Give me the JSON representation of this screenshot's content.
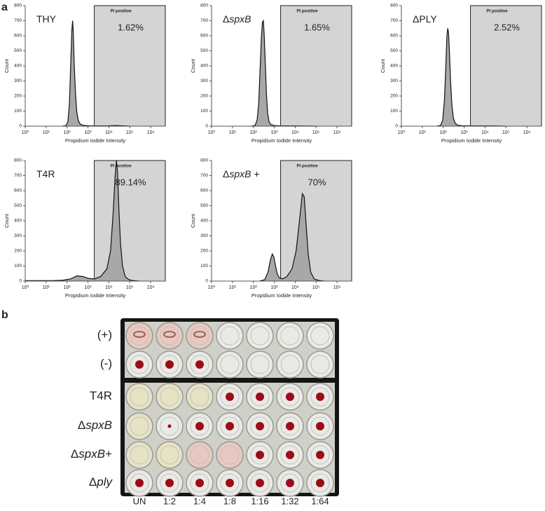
{
  "panel_labels": [
    "a",
    "b"
  ],
  "chart_data": [
    {
      "type": "area",
      "label": [
        {
          "text": "THY"
        }
      ],
      "annotation": "1.62%",
      "gate_label": "PI positive",
      "gate_start": 2000,
      "x_label": "Propidium Iodide Intensity",
      "y_label": "Count",
      "x": [
        60,
        90,
        110,
        130,
        150,
        170,
        185,
        200,
        220,
        250,
        290,
        340,
        420,
        600,
        1000,
        2000,
        8000,
        20000,
        60000,
        100000
      ],
      "values": [
        0,
        4,
        30,
        150,
        420,
        640,
        700,
        610,
        420,
        230,
        100,
        40,
        15,
        5,
        3,
        2,
        2,
        4,
        2,
        0
      ],
      "xlim": [
        1,
        5000000
      ],
      "log_x": true,
      "ylim": [
        0,
        800
      ],
      "xticks": [
        {
          "value": 1,
          "label": "10⁰"
        },
        {
          "value": 10,
          "label": "10¹"
        },
        {
          "value": 100,
          "label": "10²"
        },
        {
          "value": 1000,
          "label": "10³"
        },
        {
          "value": 10000,
          "label": "10⁴"
        },
        {
          "value": 100000,
          "label": "10⁵"
        },
        {
          "value": 1000000,
          "label": "10⁶"
        }
      ],
      "yticks": [
        0,
        100,
        200,
        300,
        400,
        500,
        600,
        700,
        800
      ]
    },
    {
      "type": "area",
      "label": [
        {
          "text": "Δ"
        },
        {
          "text": "spxB",
          "italic": true
        }
      ],
      "annotation": "1.65%",
      "gate_label": "PI positive",
      "gate_start": 2000,
      "x_label": "Propidium Iodide Intensity",
      "y_label": "Count",
      "x": [
        80,
        120,
        150,
        180,
        210,
        240,
        270,
        300,
        330,
        370,
        420,
        480,
        560,
        700,
        1000,
        2000,
        10000,
        100000
      ],
      "values": [
        0,
        5,
        40,
        150,
        380,
        580,
        690,
        700,
        600,
        420,
        220,
        90,
        30,
        10,
        4,
        2,
        2,
        0
      ],
      "xlim": [
        1,
        5000000
      ],
      "log_x": true,
      "ylim": [
        0,
        800
      ],
      "xticks": [
        {
          "value": 1,
          "label": "10⁰"
        },
        {
          "value": 10,
          "label": "10¹"
        },
        {
          "value": 100,
          "label": "10²"
        },
        {
          "value": 1000,
          "label": "10³"
        },
        {
          "value": 10000,
          "label": "10⁴"
        },
        {
          "value": 100000,
          "label": "10⁵"
        },
        {
          "value": 1000000,
          "label": "10⁶"
        }
      ],
      "yticks": [
        0,
        100,
        200,
        300,
        400,
        500,
        600,
        700,
        800
      ]
    },
    {
      "type": "area",
      "label": [
        {
          "text": "ΔPLY"
        }
      ],
      "annotation": "2.52%",
      "gate_label": "PI positive",
      "gate_start": 2000,
      "x_label": "Propidium Iodide Intensity",
      "y_label": "Count",
      "x": [
        50,
        75,
        95,
        115,
        135,
        150,
        165,
        180,
        200,
        225,
        260,
        310,
        380,
        500,
        800,
        2000,
        20000,
        100000
      ],
      "values": [
        0,
        5,
        40,
        180,
        420,
        600,
        650,
        620,
        480,
        300,
        140,
        50,
        18,
        6,
        3,
        2,
        2,
        0
      ],
      "xlim": [
        1,
        5000000
      ],
      "log_x": true,
      "ylim": [
        0,
        800
      ],
      "xticks": [
        {
          "value": 1,
          "label": "10⁰"
        },
        {
          "value": 10,
          "label": "10¹"
        },
        {
          "value": 100,
          "label": "10²"
        },
        {
          "value": 1000,
          "label": "10³"
        },
        {
          "value": 10000,
          "label": "10⁴"
        },
        {
          "value": 100000,
          "label": "10⁵"
        },
        {
          "value": 1000000,
          "label": "10⁶"
        }
      ],
      "yticks": [
        0,
        100,
        200,
        300,
        400,
        500,
        600,
        700,
        800
      ]
    },
    {
      "type": "area",
      "label": [
        {
          "text": "T4R"
        }
      ],
      "annotation": "89.14%",
      "gate_label": "PI positive",
      "gate_start": 2000,
      "x_label": "Propidium Iodide Intensity",
      "y_label": "Count",
      "x": [
        1,
        20,
        60,
        150,
        300,
        600,
        1000,
        2000,
        4000,
        8000,
        12000,
        16000,
        20000,
        23000,
        26000,
        30000,
        36000,
        45000,
        60000,
        90000,
        150000,
        300000
      ],
      "values": [
        3,
        3,
        5,
        15,
        35,
        30,
        18,
        14,
        30,
        80,
        200,
        450,
        700,
        800,
        720,
        480,
        250,
        100,
        30,
        10,
        3,
        0
      ],
      "xlim": [
        1,
        5000000
      ],
      "log_x": true,
      "ylim": [
        0,
        800
      ],
      "xticks": [
        {
          "value": 1,
          "label": "10⁰"
        },
        {
          "value": 10,
          "label": "10¹"
        },
        {
          "value": 100,
          "label": "10²"
        },
        {
          "value": 1000,
          "label": "10³"
        },
        {
          "value": 10000,
          "label": "10⁴"
        },
        {
          "value": 100000,
          "label": "10⁵"
        },
        {
          "value": 1000000,
          "label": "10⁶"
        }
      ],
      "yticks": [
        0,
        100,
        200,
        300,
        400,
        500,
        600,
        700,
        800
      ]
    },
    {
      "type": "area",
      "label": [
        {
          "text": "Δ"
        },
        {
          "text": "spxB",
          "italic": true
        },
        {
          "text": " +"
        }
      ],
      "annotation": "70%",
      "gate_label": "PI positive",
      "gate_start": 2000,
      "x_label": "Propidium Iodide Intensity",
      "y_label": "Count",
      "x": [
        200,
        350,
        500,
        650,
        800,
        950,
        1150,
        1400,
        1800,
        2500,
        4000,
        7000,
        11000,
        16000,
        22000,
        27000,
        33000,
        42000,
        55000,
        80000,
        130000,
        250000
      ],
      "values": [
        0,
        10,
        60,
        140,
        180,
        160,
        100,
        45,
        20,
        15,
        30,
        80,
        200,
        400,
        580,
        560,
        380,
        180,
        60,
        15,
        4,
        0
      ],
      "xlim": [
        1,
        5000000
      ],
      "log_x": true,
      "ylim": [
        0,
        800
      ],
      "xticks": [
        {
          "value": 1,
          "label": "10⁰"
        },
        {
          "value": 10,
          "label": "10¹"
        },
        {
          "value": 100,
          "label": "10²"
        },
        {
          "value": 1000,
          "label": "10³"
        },
        {
          "value": 10000,
          "label": "10⁴"
        },
        {
          "value": 100000,
          "label": "10⁵"
        },
        {
          "value": 1000000,
          "label": "10⁶"
        }
      ],
      "yticks": [
        0,
        100,
        200,
        300,
        400,
        500,
        600,
        700,
        800
      ]
    }
  ],
  "plate": {
    "row_labels": [
      [
        {
          "text": "(+)"
        }
      ],
      [
        {
          "text": "(-)"
        }
      ],
      [
        {
          "text": "T4R"
        }
      ],
      [
        {
          "text": "Δ"
        },
        {
          "text": "spxB",
          "italic": true
        }
      ],
      [
        {
          "text": "Δ"
        },
        {
          "text": "spxB",
          "italic": true
        },
        {
          "text": "+"
        }
      ],
      [
        {
          "text": "Δ"
        },
        {
          "text": "ply",
          "italic": true
        }
      ]
    ],
    "column_labels": [
      "UN",
      "1:2",
      "1:4",
      "1:8",
      "1:16",
      "1:32",
      "1:64"
    ]
  }
}
